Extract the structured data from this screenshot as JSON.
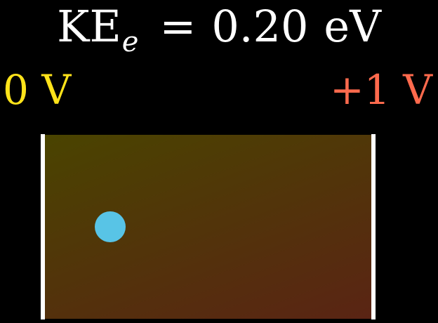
{
  "equation": {
    "symbol": "KE",
    "subscript": "e",
    "equals": "=",
    "value": "0.20",
    "unit": "eV"
  },
  "plates": {
    "left": {
      "label": "0 V",
      "color": "#ffe31a"
    },
    "right": {
      "label": "+1 V",
      "color": "#ff6a4d"
    }
  },
  "field_region": {
    "gradient_start": "#4a4400",
    "gradient_end": "#5a2414"
  },
  "electron": {
    "color": "#58c4e6"
  },
  "plate_color": "#ffffff"
}
